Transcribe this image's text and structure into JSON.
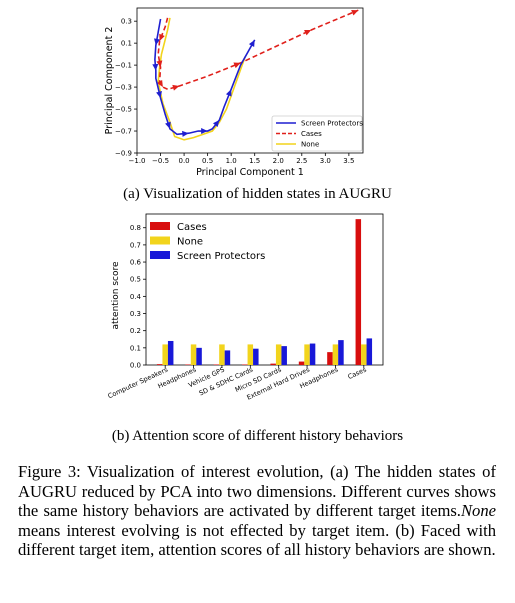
{
  "chart_data": [
    {
      "type": "line",
      "title": "",
      "xlabel": "Principal Component 1",
      "ylabel": "Principal Component 2",
      "xlim": [
        -1.0,
        3.8
      ],
      "ylim": [
        -0.9,
        0.42
      ],
      "x_ticks": [
        -1.0,
        -0.5,
        0.0,
        0.5,
        1.0,
        1.5,
        2.0,
        2.5,
        3.0,
        3.5
      ],
      "x_tick_labels": [
        "−1.0",
        "−0.5",
        "0.0",
        "0.5",
        "1.0",
        "1.5",
        "2.0",
        "2.5",
        "3.0",
        "3.5"
      ],
      "y_ticks": [
        -0.9,
        -0.7,
        -0.5,
        -0.3,
        -0.1,
        0.1,
        0.3
      ],
      "y_tick_labels": [
        "−0.9",
        "−0.7",
        "−0.5",
        "−0.3",
        "−0.1",
        "0.1",
        "0.3"
      ],
      "legend_position": "lower-right",
      "grid": false,
      "series": [
        {
          "name": "Screen Protectors",
          "color": "#1f1fd0",
          "style": "solid",
          "x": [
            -0.5,
            -0.55,
            -0.6,
            -0.62,
            -0.6,
            -0.6,
            -0.5,
            -0.4,
            -0.3,
            -0.15,
            0.1,
            0.3,
            0.5,
            0.6,
            0.75,
            0.85,
            1.0,
            1.2,
            1.5
          ],
          "y": [
            0.32,
            0.2,
            0.08,
            -0.05,
            -0.15,
            -0.22,
            -0.4,
            -0.55,
            -0.68,
            -0.73,
            -0.72,
            -0.7,
            -0.7,
            -0.68,
            -0.6,
            -0.48,
            -0.32,
            -0.1,
            0.13
          ]
        },
        {
          "name": "Cases",
          "color": "#e0201b",
          "style": "dashed",
          "x": [
            -0.35,
            -0.4,
            -0.52,
            -0.55,
            -0.5,
            -0.52,
            -0.45,
            -0.35,
            -0.1,
            0.5,
            1.2,
            1.9,
            2.7,
            3.7
          ],
          "y": [
            0.33,
            0.25,
            0.12,
            0.0,
            -0.12,
            -0.25,
            -0.3,
            -0.32,
            -0.29,
            -0.2,
            -0.08,
            0.06,
            0.22,
            0.4
          ]
        },
        {
          "name": "None",
          "color": "#f2d41c",
          "style": "solid",
          "x": [
            -0.3,
            -0.35,
            -0.42,
            -0.48,
            -0.52,
            -0.55,
            -0.45,
            -0.3,
            -0.2,
            0.0,
            0.2,
            0.4,
            0.6,
            0.75,
            0.9,
            1.0,
            1.15,
            1.3
          ],
          "y": [
            0.33,
            0.22,
            0.1,
            0.0,
            -0.12,
            -0.25,
            -0.45,
            -0.62,
            -0.75,
            -0.78,
            -0.76,
            -0.73,
            -0.7,
            -0.62,
            -0.5,
            -0.38,
            -0.2,
            -0.02
          ]
        }
      ]
    },
    {
      "type": "bar",
      "title": "",
      "xlabel": "",
      "ylabel": "attention score",
      "ylim": [
        0,
        0.88
      ],
      "y_ticks": [
        0.0,
        0.1,
        0.2,
        0.3,
        0.4,
        0.5,
        0.6,
        0.7,
        0.8
      ],
      "y_tick_labels": [
        "0.0",
        "0.1",
        "0.2",
        "0.3",
        "0.4",
        "0.5",
        "0.6",
        "0.7",
        "0.8"
      ],
      "legend_position": "upper-left",
      "categories": [
        "Computer Speakers",
        "Headphones",
        "Vehicle GPS",
        "SD & SDHC Cards",
        "Micro SD Cards",
        "External Hard Drives",
        "Headphones",
        "Cases"
      ],
      "series": [
        {
          "name": "Cases",
          "color": "#d80e0e",
          "values": [
            0.005,
            0.003,
            0.003,
            0.003,
            0.008,
            0.02,
            0.075,
            0.85
          ]
        },
        {
          "name": "None",
          "color": "#f2d41c",
          "values": [
            0.12,
            0.12,
            0.12,
            0.12,
            0.12,
            0.12,
            0.12,
            0.12
          ]
        },
        {
          "name": "Screen Protectors",
          "color": "#1818d8",
          "values": [
            0.14,
            0.1,
            0.085,
            0.095,
            0.11,
            0.125,
            0.145,
            0.155
          ]
        }
      ]
    }
  ],
  "captions": {
    "a": "(a) Visualization of hidden states in AUGRU",
    "b": "(b) Attention score of different history behaviors"
  },
  "figure_caption": {
    "part1": "Figure 3: Visualization of interest evolution, (a) The hidden states of AUGRU reduced by PCA into two dimensions. Different curves shows the same history behaviors are activated by different target items.",
    "part2": "None",
    "part3": " means interest evolving is not effected by target item. (b) Faced with different target item, attention scores of all history behaviors are shown."
  }
}
